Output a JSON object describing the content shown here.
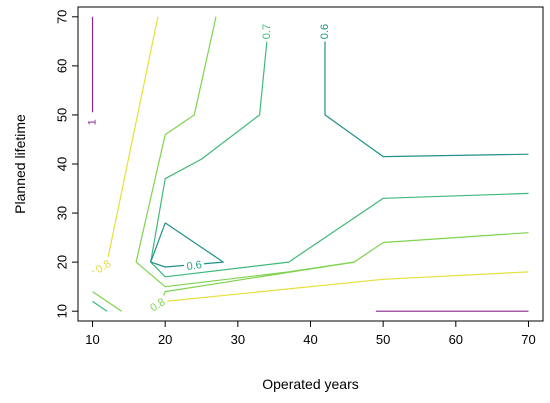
{
  "chart_data": {
    "type": "contour",
    "title": "",
    "xlabel": "Operated years",
    "ylabel": "Planned lifetime",
    "xlim": [
      8,
      72
    ],
    "ylim": [
      8,
      72
    ],
    "xticks": [
      10,
      20,
      30,
      40,
      50,
      60,
      70
    ],
    "yticks": [
      10,
      20,
      30,
      40,
      50,
      60,
      70
    ],
    "grid": false,
    "legend": "none",
    "contours": [
      {
        "label": "1",
        "color": "#8a2a8f",
        "lines": [
          [
            [
              10,
              70
            ],
            [
              10,
              50
            ]
          ],
          [
            [
              49,
              10
            ],
            [
              70,
              10
            ]
          ]
        ],
        "label_at": [
          10,
          48.5
        ]
      },
      {
        "label": "0.8",
        "color": "#e6e03a",
        "lines": [
          [
            [
              10,
              18
            ],
            [
              12,
              20
            ],
            [
              19,
              70
            ]
          ],
          [
            [
              18,
              10
            ],
            [
              20,
              12
            ],
            [
              50,
              16.5
            ],
            [
              70,
              18
            ]
          ]
        ],
        "label_at": [
          11.5,
          19
        ]
      },
      {
        "label": "0.8",
        "color": "#7fd34e",
        "lines": [
          [
            [
              10,
              14
            ],
            [
              14,
              10
            ]
          ],
          [
            [
              16,
              20
            ],
            [
              20,
              15
            ],
            [
              37,
              18
            ],
            [
              46,
              20
            ],
            [
              50,
              24
            ],
            [
              70,
              26
            ]
          ],
          [
            [
              16,
              20
            ],
            [
              20,
              46
            ],
            [
              24,
              50
            ],
            [
              27,
              70
            ]
          ],
          [
            [
              19,
              10
            ],
            [
              20,
              14
            ],
            [
              46,
              20
            ]
          ]
        ],
        "label_at": [
          19,
          11.2
        ]
      },
      {
        "label": "0.7",
        "color": "#3fb97a",
        "lines": [
          [
            [
              18,
              20
            ],
            [
              20,
              17
            ],
            [
              37,
              20
            ],
            [
              50,
              33
            ],
            [
              70,
              34
            ]
          ],
          [
            [
              18,
              20
            ],
            [
              20,
              37
            ],
            [
              25,
              41
            ],
            [
              33,
              50
            ],
            [
              34,
              65
            ]
          ],
          [
            [
              10,
              12
            ],
            [
              12,
              10
            ]
          ]
        ],
        "label_at": [
          34,
          67
        ]
      },
      {
        "label": "0.6",
        "color": "#1f9188",
        "lines": [
          [
            [
              42,
              65
            ],
            [
              42,
              50
            ],
            [
              50,
              41.5
            ],
            [
              70,
              42
            ]
          ],
          [
            [
              20,
              28
            ],
            [
              28,
              20
            ],
            [
              20,
              19
            ],
            [
              18,
              20
            ],
            [
              20,
              28
            ]
          ]
        ],
        "label_at": [
          42,
          67
        ]
      },
      {
        "label": "0.6",
        "color": "#2aa58a",
        "lines": [],
        "label_at": [
          24,
          19.2
        ]
      }
    ]
  }
}
